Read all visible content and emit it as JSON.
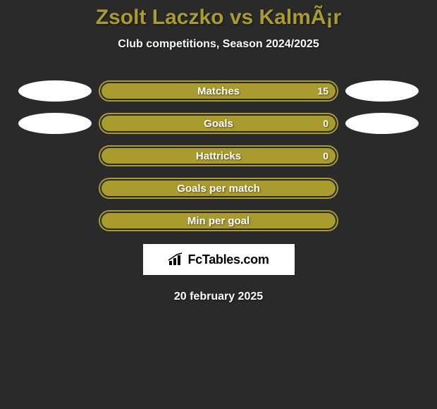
{
  "title": "Zsolt Laczko vs KalmÃ¡r",
  "title_color": "#a99b2e",
  "subtitle": "Club competitions, Season 2024/2025",
  "background_color": "#2a2a2a",
  "accent_color": "#a99b2e",
  "ellipse_color": "#ffffff",
  "bars": [
    {
      "label": "Matches",
      "value": "15",
      "fill_color": "#a99b2e",
      "fill_pct": 100,
      "show_left_ellipse": true,
      "show_right_ellipse": true,
      "show_value": true
    },
    {
      "label": "Goals",
      "value": "0",
      "fill_color": "#a99b2e",
      "fill_pct": 100,
      "show_left_ellipse": true,
      "show_right_ellipse": true,
      "show_value": true
    },
    {
      "label": "Hattricks",
      "value": "0",
      "fill_color": "#a99b2e",
      "fill_pct": 100,
      "show_left_ellipse": false,
      "show_right_ellipse": false,
      "show_value": true
    },
    {
      "label": "Goals per match",
      "value": "",
      "fill_color": "#a99b2e",
      "fill_pct": 100,
      "show_left_ellipse": false,
      "show_right_ellipse": false,
      "show_value": false
    },
    {
      "label": "Min per goal",
      "value": "",
      "fill_color": "#a99b2e",
      "fill_pct": 100,
      "show_left_ellipse": false,
      "show_right_ellipse": false,
      "show_value": false
    }
  ],
  "logo_text": "FcTables.com",
  "date_text": "20 february 2025"
}
